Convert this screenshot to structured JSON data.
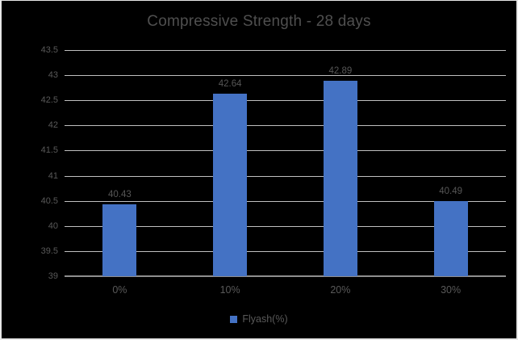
{
  "window": {
    "background": "#000000",
    "border_color": "#e6e6e6"
  },
  "chart_data": {
    "type": "bar",
    "title": "Compressive Strength - 28 days",
    "categories": [
      "0%",
      "10%",
      "20%",
      "30%"
    ],
    "series": [
      {
        "name": "Flyash(%)",
        "color": "#4472c4",
        "values": [
          40.43,
          42.64,
          42.89,
          40.49
        ],
        "value_labels": [
          "40.43",
          "42.64",
          "42.89",
          "40.49"
        ]
      }
    ],
    "xlabel": "",
    "ylabel": "",
    "ylim": [
      39,
      43.5
    ],
    "ytick_step": 0.5,
    "ytick_labels": [
      "39",
      "39.5",
      "40",
      "40.5",
      "41",
      "41.5",
      "42",
      "42.5",
      "43",
      "43.5"
    ],
    "grid": true,
    "legend_position": "bottom",
    "colors": {
      "grid_line": "#bfbfbf",
      "axis_line": "#8f8f8f",
      "title_text": "#4f4f4f",
      "tick_text": "#595959",
      "data_label_text": "#565656",
      "legend_text": "#595959"
    }
  }
}
